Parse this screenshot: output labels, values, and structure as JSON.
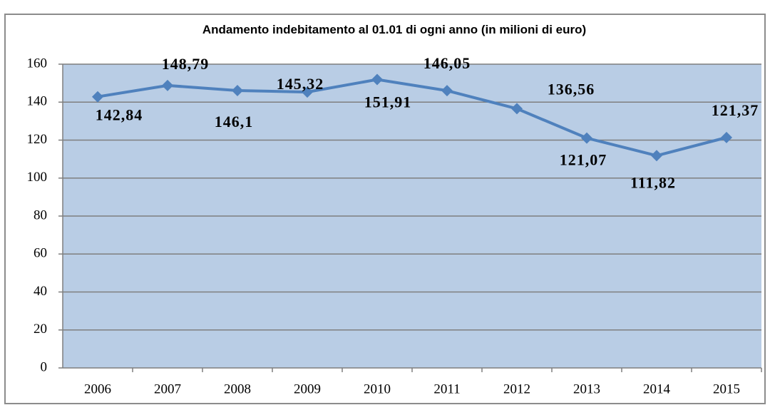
{
  "chart_data": {
    "type": "line",
    "title": "Andamento indebitamento al 01.01 di ogni anno (in milioni di euro)",
    "categories": [
      "2006",
      "2007",
      "2008",
      "2009",
      "2010",
      "2011",
      "2012",
      "2013",
      "2014",
      "2015"
    ],
    "series": [
      {
        "name": "Indebitamento",
        "color": "#4f81bd",
        "values": [
          142.84,
          148.79,
          146.1,
          145.32,
          151.91,
          146.05,
          136.56,
          121.07,
          111.82,
          121.37
        ],
        "value_labels": [
          "142,84",
          "148,79",
          "146,1",
          "145,32",
          "151,91",
          "146,05",
          "136,56",
          "121,07",
          "111,82",
          "121,37"
        ]
      }
    ],
    "ylim": [
      0,
      160
    ],
    "yticks": [
      0,
      20,
      40,
      60,
      80,
      100,
      120,
      140,
      160
    ],
    "grid": true,
    "legend": false
  }
}
